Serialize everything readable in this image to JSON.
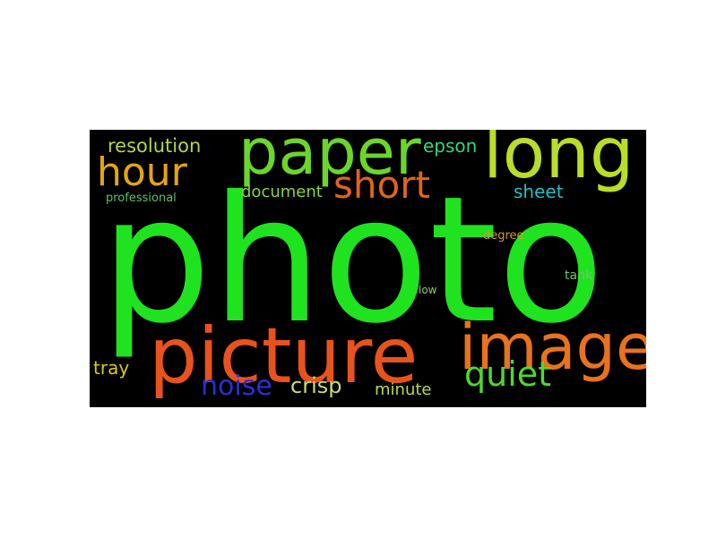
{
  "word_cloud": {
    "background": "#000000",
    "words": [
      {
        "text": "photo",
        "color": "#1fe31f"
      },
      {
        "text": "picture",
        "color": "#e8531d"
      },
      {
        "text": "image",
        "color": "#e8721d"
      },
      {
        "text": "paper",
        "color": "#6bd62a"
      },
      {
        "text": "long",
        "color": "#b9dd2a"
      },
      {
        "text": "hour",
        "color": "#e2a516"
      },
      {
        "text": "short",
        "color": "#e0641d"
      },
      {
        "text": "quiet",
        "color": "#4ed82f"
      },
      {
        "text": "noise",
        "color": "#2a2fd6"
      },
      {
        "text": "crisp",
        "color": "#c8df6e"
      },
      {
        "text": "resolution",
        "color": "#b2d64d"
      },
      {
        "text": "document",
        "color": "#86d63a"
      },
      {
        "text": "epson",
        "color": "#2ed883"
      },
      {
        "text": "sheet",
        "color": "#22bfc4"
      },
      {
        "text": "professional",
        "color": "#5bc06a"
      },
      {
        "text": "tray",
        "color": "#dcc624"
      },
      {
        "text": "minute",
        "color": "#b6d94c"
      },
      {
        "text": "degree",
        "color": "#d59a25"
      },
      {
        "text": "tank",
        "color": "#6ec768"
      },
      {
        "text": "low",
        "color": "#8ed05a"
      }
    ]
  }
}
